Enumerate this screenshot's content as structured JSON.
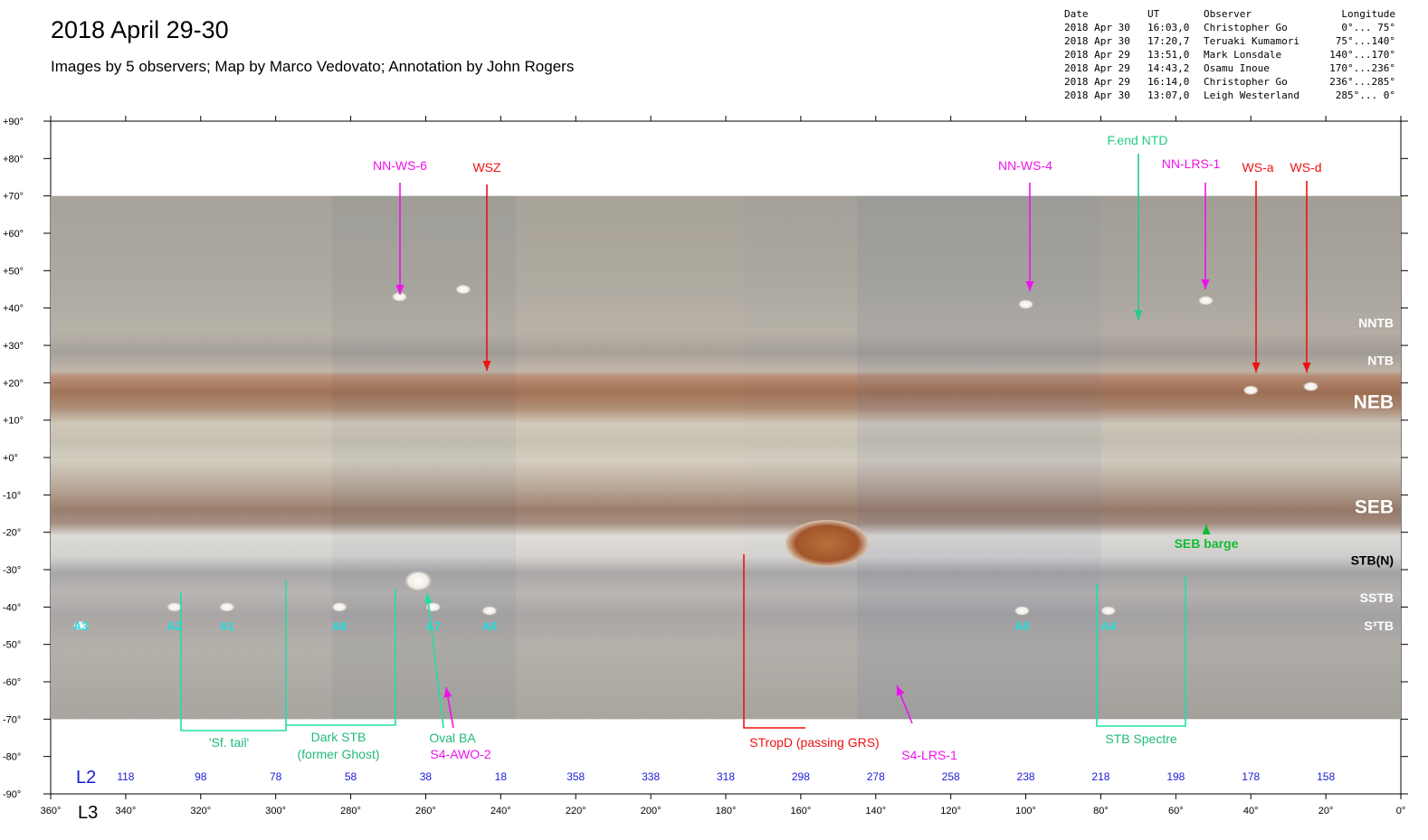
{
  "title": "2018 April 29-30",
  "subtitle": "Images by 5 observers;  Map by Marco Vedovato;   Annotation by John Rogers",
  "observations": {
    "headers": [
      "Date",
      "UT",
      "Observer",
      "Longitude"
    ],
    "rows": [
      [
        "2018 Apr 30",
        "16:03,0",
        "Christopher Go",
        "0°... 75°"
      ],
      [
        "2018 Apr 30",
        "17:20,7",
        "Teruaki Kumamori",
        "75°...140°"
      ],
      [
        "2018 Apr 29",
        "13:51,0",
        "Mark Lonsdale",
        "140°...170°"
      ],
      [
        "2018 Apr 29",
        "14:43,2",
        "Osamu Inoue",
        "170°...236°"
      ],
      [
        "2018 Apr 29",
        "16:14,0",
        "Christopher Go",
        "236°...285°"
      ],
      [
        "2018 Apr 30",
        "13:07,0",
        "Leigh Westerland",
        "285°... 0°"
      ]
    ]
  },
  "axes": {
    "latitude_labels": [
      "+90°",
      "+80°",
      "+70°",
      "+60°",
      "+50°",
      "+40°",
      "+30°",
      "+20°",
      "+10°",
      "+0°",
      "-10°",
      "-20°",
      "-30°",
      "-40°",
      "-50°",
      "-60°",
      "-70°",
      "-80°",
      "-90°"
    ],
    "l3_title": "L3",
    "l3_labels": [
      "360°",
      "340°",
      "320°",
      "300°",
      "280°",
      "260°",
      "240°",
      "220°",
      "200°",
      "180°",
      "160°",
      "140°",
      "120°",
      "100°",
      "80°",
      "60°",
      "40°",
      "20°",
      "0°"
    ],
    "l2_title": "L2",
    "l2_labels": [
      "118",
      "98",
      "78",
      "58",
      "38",
      "18",
      "358",
      "338",
      "318",
      "298",
      "278",
      "258",
      "238",
      "218",
      "198",
      "178",
      "158"
    ]
  },
  "belts": [
    {
      "label": "NNTB",
      "lat": 36,
      "style": "small",
      "color": "#ffffff"
    },
    {
      "label": "NTB",
      "lat": 26,
      "style": "small",
      "color": "#ffffff"
    },
    {
      "label": "NEB",
      "lat": 15,
      "style": "large",
      "color": "#ffffff"
    },
    {
      "label": "SEB",
      "lat": -13,
      "style": "large",
      "color": "#ffffff"
    },
    {
      "label": "STB(N)",
      "lat": -27.5,
      "style": "small",
      "color": "#000000"
    },
    {
      "label": "SSTB",
      "lat": -37.5,
      "style": "small",
      "color": "#ffffff"
    },
    {
      "label": "S³TB",
      "lat": -45,
      "style": "small",
      "color": "#ffffff"
    }
  ],
  "ovals": [
    {
      "label": "A3",
      "l3": 352,
      "lat": -45
    },
    {
      "label": "A2",
      "l3": 327,
      "lat": -45
    },
    {
      "label": "A1",
      "l3": 313,
      "lat": -45
    },
    {
      "label": "A8",
      "l3": 283,
      "lat": -45
    },
    {
      "label": "A7",
      "l3": 258,
      "lat": -45
    },
    {
      "label": "A6",
      "l3": 243,
      "lat": -45
    },
    {
      "label": "A5",
      "l3": 101,
      "lat": -45
    },
    {
      "label": "A4",
      "l3": 78,
      "lat": -45
    }
  ],
  "annotations": [
    {
      "label": "NN-WS-6",
      "color": "#ee11ee"
    },
    {
      "label": "WSZ",
      "color": "#ee1111"
    },
    {
      "label": "NN-WS-4",
      "color": "#ee11ee"
    },
    {
      "label": "F.end NTD",
      "color": "#22cc88"
    },
    {
      "label": "NN-LRS-1",
      "color": "#ee11ee"
    },
    {
      "label": "WS-a",
      "color": "#ee1111"
    },
    {
      "label": "WS-d",
      "color": "#ee1111"
    },
    {
      "label": "SEB barge",
      "color": "#11bb33"
    },
    {
      "label": "'Sf. tail'",
      "color": "#22bb77"
    },
    {
      "label": "Dark STB",
      "color": "#22bb77"
    },
    {
      "label": "(former Ghost)",
      "color": "#22bb77"
    },
    {
      "label": "Oval BA",
      "color": "#22bb77"
    },
    {
      "label": "S4-AWO-2",
      "color": "#ee11ee"
    },
    {
      "label": "STropD (passing GRS)",
      "color": "#ee1111"
    },
    {
      "label": "S4-LRS-1",
      "color": "#ee11ee"
    },
    {
      "label": "STB Spectre",
      "color": "#22bb77"
    }
  ]
}
